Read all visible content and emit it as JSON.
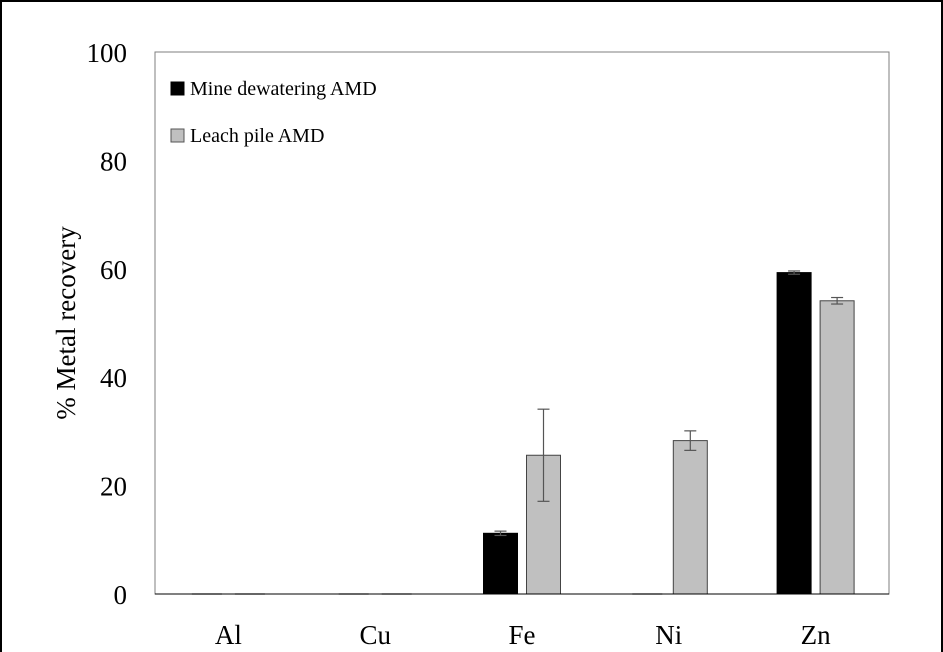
{
  "chart_data": {
    "type": "bar",
    "title": "",
    "xlabel": "",
    "ylabel": "% Metal recovery",
    "ylim": [
      0,
      100
    ],
    "yticks": [
      0,
      20,
      40,
      60,
      80,
      100
    ],
    "grid": false,
    "legend_position": "top-left",
    "categories": [
      "Al",
      "Cu",
      "Fe",
      "Ni",
      "Zn"
    ],
    "series": [
      {
        "name": "Mine dewatering AMD",
        "color": "#000000",
        "values": [
          0,
          0,
          11.2,
          0,
          59.3
        ],
        "errors": [
          0,
          0,
          0.4,
          0,
          0.3
        ]
      },
      {
        "name": "Leach pile AMD",
        "color": "#c0c0c0",
        "values": [
          0,
          0,
          25.6,
          28.3,
          54.1
        ],
        "errors": [
          0,
          0,
          8.5,
          1.8,
          0.6
        ]
      }
    ]
  }
}
